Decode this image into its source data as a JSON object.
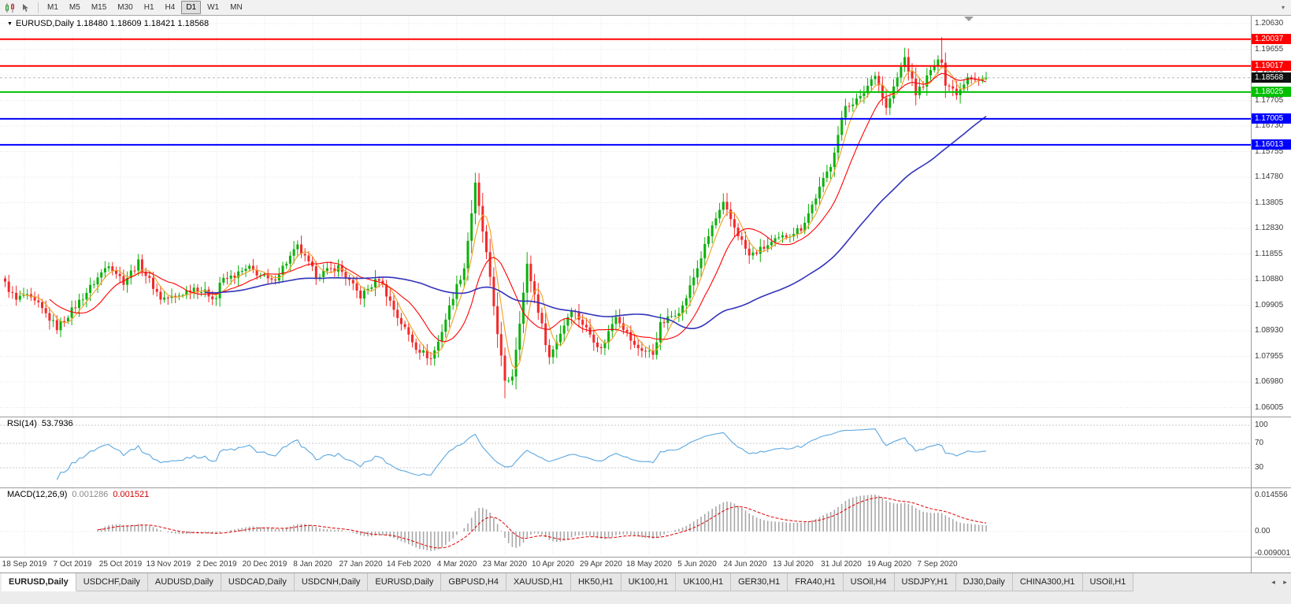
{
  "toolbar": {
    "overflow_icon": "▾",
    "timeframes": [
      {
        "label": "M1",
        "active": false
      },
      {
        "label": "M5",
        "active": false
      },
      {
        "label": "M15",
        "active": false
      },
      {
        "label": "M30",
        "active": false
      },
      {
        "label": "H1",
        "active": false
      },
      {
        "label": "H4",
        "active": false
      },
      {
        "label": "D1",
        "active": true
      },
      {
        "label": "W1",
        "active": false
      },
      {
        "label": "MN",
        "active": false
      }
    ]
  },
  "chart_data": {
    "type": "candlestick",
    "symbol": "EURUSD",
    "timeframe": "Daily",
    "title_text": "EURUSD,Daily 1.18480 1.18609 1.18421 1.18568",
    "ohlc_readout": {
      "open": "1.18480",
      "high": "1.18609",
      "low": "1.18421",
      "close": "1.18568"
    },
    "current_price": {
      "label": "1.18568",
      "value": 1.18568
    },
    "y_axis": {
      "top_value": 1.2063,
      "bottom_value": 1.06005,
      "labels": [
        "1.20630",
        "1.19655",
        "1.18680",
        "1.17705",
        "1.16730",
        "1.15755",
        "1.14780",
        "1.13805",
        "1.12830",
        "1.11855",
        "1.10880",
        "1.09905",
        "1.08930",
        "1.07955",
        "1.06980",
        "1.06005"
      ]
    },
    "x_axis": {
      "labels": [
        "18 Sep 2019",
        "7 Oct 2019",
        "25 Oct 2019",
        "13 Nov 2019",
        "2 Dec 2019",
        "20 Dec 2019",
        "8 Jan 2020",
        "27 Jan 2020",
        "14 Feb 2020",
        "4 Mar 2020",
        "23 Mar 2020",
        "10 Apr 2020",
        "29 Apr 2020",
        "18 May 2020",
        "5 Jun 2020",
        "24 Jun 2020",
        "13 Jul 2020",
        "31 Jul 2020",
        "19 Aug 2020",
        "7 Sep 2020"
      ]
    },
    "hlines": [
      {
        "price": "1.20037",
        "value": 1.20037,
        "color": "#ff0000"
      },
      {
        "price": "1.19017",
        "value": 1.19017,
        "color": "#ff0000"
      },
      {
        "price": "1.18025",
        "value": 1.18025,
        "color": "#00c000"
      },
      {
        "price": "1.17005",
        "value": 1.17005,
        "color": "#0000ff"
      },
      {
        "price": "1.16013",
        "value": 1.16013,
        "color": "#0000ff"
      }
    ],
    "moving_averages": [
      {
        "period": 5,
        "color": "#efa020"
      },
      {
        "period": 13,
        "color": "#ff0000"
      },
      {
        "period": 55,
        "color": "#3333bb"
      }
    ],
    "candles": {
      "up_color": "#0cb00c",
      "down_color": "#f22a2a",
      "count": 266,
      "anchors": [
        [
          0,
          1.1072
        ],
        [
          3,
          1.1008
        ],
        [
          5,
          1.103
        ],
        [
          9,
          1.099
        ],
        [
          14,
          1.0905
        ],
        [
          18,
          1.097
        ],
        [
          22,
          1.104
        ],
        [
          28,
          1.115
        ],
        [
          32,
          1.108
        ],
        [
          36,
          1.1152
        ],
        [
          42,
          1.1017
        ],
        [
          46,
          1.1021
        ],
        [
          51,
          1.1058
        ],
        [
          57,
          1.1018
        ],
        [
          58,
          1.1078
        ],
        [
          66,
          1.113
        ],
        [
          72,
          1.1078
        ],
        [
          79,
          1.1212
        ],
        [
          84,
          1.1104
        ],
        [
          90,
          1.1136
        ],
        [
          96,
          1.1024
        ],
        [
          101,
          1.1093
        ],
        [
          106,
          1.0946
        ],
        [
          111,
          1.0831
        ],
        [
          115,
          1.0786
        ],
        [
          117,
          1.0851
        ],
        [
          121,
          1.1026
        ],
        [
          124,
          1.1134
        ],
        [
          127,
          1.1448
        ],
        [
          130,
          1.1184
        ],
        [
          135,
          1.0692
        ],
        [
          137,
          1.0724
        ],
        [
          141,
          1.1141
        ],
        [
          143,
          1.1031
        ],
        [
          147,
          1.0791
        ],
        [
          153,
          1.098
        ],
        [
          161,
          1.0821
        ],
        [
          165,
          1.0955
        ],
        [
          170,
          1.0834
        ],
        [
          175,
          1.0805
        ],
        [
          177,
          1.0915
        ],
        [
          183,
          1.0984
        ],
        [
          187,
          1.1134
        ],
        [
          191,
          1.1292
        ],
        [
          194,
          1.1373
        ],
        [
          201,
          1.1177
        ],
        [
          206,
          1.1218
        ],
        [
          208,
          1.1234
        ],
        [
          215,
          1.1284
        ],
        [
          217,
          1.1341
        ],
        [
          223,
          1.1527
        ],
        [
          227,
          1.1751
        ],
        [
          231,
          1.1778
        ],
        [
          235,
          1.1876
        ],
        [
          238,
          1.1739
        ],
        [
          243,
          1.1934
        ],
        [
          246,
          1.1797
        ],
        [
          248,
          1.1834
        ],
        [
          251,
          1.1903
        ],
        [
          253,
          1.1925
        ],
        [
          254,
          1.1838
        ],
        [
          257,
          1.1801
        ],
        [
          258,
          1.1815
        ],
        [
          260,
          1.1866
        ],
        [
          263,
          1.1847
        ],
        [
          265,
          1.18568
        ]
      ],
      "wick_overrides": [
        {
          "i": 127,
          "high": 1.1495
        },
        {
          "i": 135,
          "low": 1.0636
        },
        {
          "i": 253,
          "high": 1.2011
        }
      ]
    },
    "rsi": {
      "name": "RSI(14)",
      "value": "53.7936",
      "period": 14,
      "levels": [
        100,
        70,
        30
      ],
      "color": "#5ba7e0"
    },
    "macd": {
      "name": "MACD(12,26,9)",
      "main_value": "0.001286",
      "signal_value": "0.001521",
      "fast": 12,
      "slow": 26,
      "signal": 9,
      "axis_labels": [
        "0.014556",
        "0.00",
        "-0.009001"
      ],
      "range_top": 0.0155,
      "range_bottom": -0.0095,
      "hist_color": "#a8a8a8",
      "signal_color": "#e00000"
    }
  },
  "tabs": {
    "scroll_left": "◂",
    "scroll_right": "▸",
    "items": [
      {
        "label": "EURUSD,Daily",
        "active": true
      },
      {
        "label": "USDCHF,Daily",
        "active": false
      },
      {
        "label": "AUDUSD,Daily",
        "active": false
      },
      {
        "label": "USDCAD,Daily",
        "active": false
      },
      {
        "label": "USDCNH,Daily",
        "active": false
      },
      {
        "label": "EURUSD,Daily",
        "active": false
      },
      {
        "label": "GBPUSD,H4",
        "active": false
      },
      {
        "label": "XAUUSD,H1",
        "active": false
      },
      {
        "label": "HK50,H1",
        "active": false
      },
      {
        "label": "UK100,H1",
        "active": false
      },
      {
        "label": "UK100,H1",
        "active": false
      },
      {
        "label": "GER30,H1",
        "active": false
      },
      {
        "label": "FRA40,H1",
        "active": false
      },
      {
        "label": "USOil,H4",
        "active": false
      },
      {
        "label": "USDJPY,H1",
        "active": false
      },
      {
        "label": "DJ30,Daily",
        "active": false
      },
      {
        "label": "CHINA300,H1",
        "active": false
      },
      {
        "label": "USOil,H1",
        "active": false
      }
    ]
  }
}
